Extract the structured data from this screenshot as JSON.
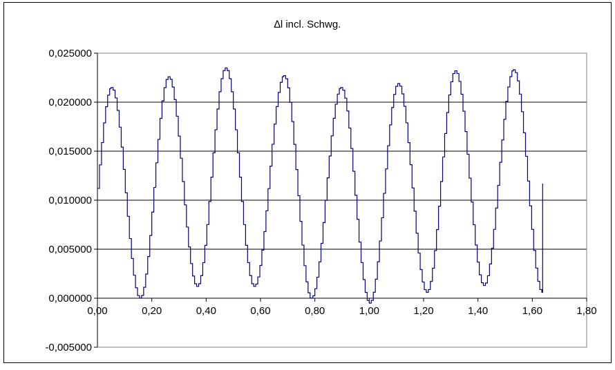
{
  "chart_data": {
    "type": "line",
    "title": "∆l incl. Schwg.",
    "xlabel": "",
    "ylabel": "",
    "xlim": [
      0,
      1.8
    ],
    "ylim": [
      -0.005,
      0.025
    ],
    "x_ticks": [
      "0,00",
      "0,20",
      "0,40",
      "0,60",
      "0,80",
      "1,00",
      "1,20",
      "1,40",
      "1,60",
      "1,80"
    ],
    "y_ticks": [
      "0,025000",
      "0,020000",
      "0,015000",
      "0,010000",
      "0,005000",
      "0,000000",
      "-0,005000"
    ],
    "grid": "horizontal",
    "legend": "none",
    "line_color": "#000080",
    "series": [
      {
        "peaks": [
          [
            0.05,
            0.0215
          ],
          [
            0.26,
            0.0226
          ],
          [
            0.47,
            0.0235
          ],
          [
            0.685,
            0.0227
          ],
          [
            0.895,
            0.0215
          ],
          [
            1.105,
            0.0219
          ],
          [
            1.315,
            0.0232
          ],
          [
            1.53,
            0.0233
          ]
        ],
        "troughs": [
          [
            0.155,
            0.0
          ],
          [
            0.365,
            0.0012
          ],
          [
            0.575,
            0.0012
          ],
          [
            0.785,
            0.0
          ],
          [
            1.0,
            -0.0005
          ],
          [
            1.21,
            0.0006
          ],
          [
            1.42,
            0.0013
          ],
          [
            1.635,
            0.0006
          ]
        ],
        "start": [
          0.0,
          0.0112
        ],
        "end_spike": [
          1.638,
          0.0117
        ]
      }
    ]
  }
}
